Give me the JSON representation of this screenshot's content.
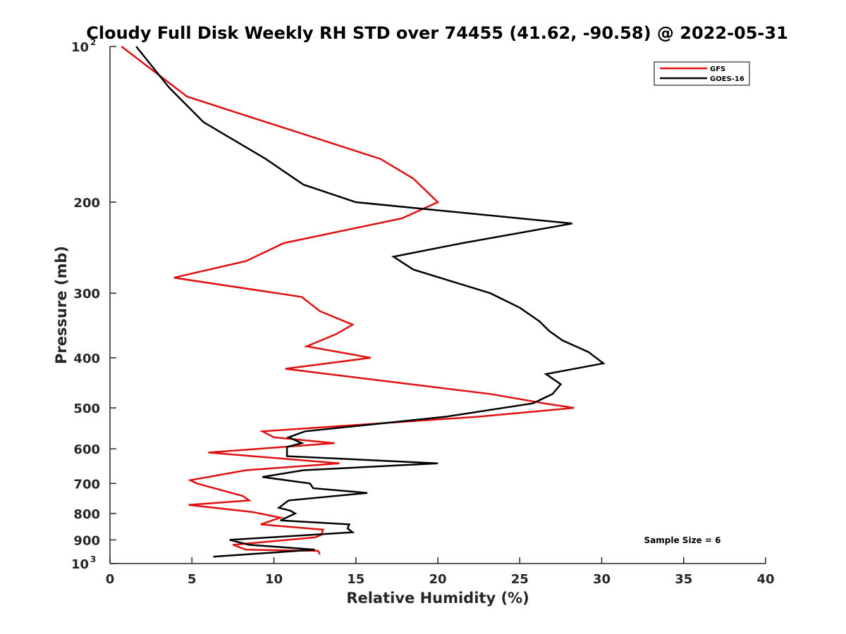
{
  "chart_data": {
    "type": "line",
    "title": "Cloudy Full Disk Weekly RH STD over 74455 (41.62, -90.58) @ 2022-05-31",
    "xlabel": "Relative Humidity (%)",
    "ylabel": "Pressure (mb)",
    "xlim": [
      0,
      40
    ],
    "ylim": [
      100,
      1000
    ],
    "y_scale": "log",
    "y_reversed": true,
    "x_ticks": [
      "0",
      "5",
      "10",
      "15",
      "20",
      "25",
      "30",
      "35",
      "40"
    ],
    "y_ticks": [
      {
        "value": 100,
        "base": "10",
        "exp": "2"
      },
      {
        "value": 200,
        "label": "200"
      },
      {
        "value": 300,
        "label": "300"
      },
      {
        "value": 400,
        "label": "400"
      },
      {
        "value": 500,
        "label": "500"
      },
      {
        "value": 600,
        "label": "600"
      },
      {
        "value": 700,
        "label": "700"
      },
      {
        "value": 800,
        "label": "800"
      },
      {
        "value": 900,
        "label": "900"
      },
      {
        "value": 1000,
        "base": "10",
        "exp": "3"
      }
    ],
    "grid": false,
    "legend_position": "top-right",
    "annotation": "Sample Size = 6",
    "series": [
      {
        "name": "GFS",
        "color": "#e01010",
        "points": [
          [
            0.7,
            100
          ],
          [
            4.7,
            125
          ],
          [
            16.5,
            165
          ],
          [
            18.5,
            180
          ],
          [
            20.0,
            200
          ],
          [
            17.8,
            215
          ],
          [
            10.6,
            240
          ],
          [
            8.3,
            260
          ],
          [
            3.9,
            280
          ],
          [
            11.7,
            305
          ],
          [
            12.8,
            325
          ],
          [
            14.8,
            345
          ],
          [
            13.8,
            360
          ],
          [
            12.0,
            380
          ],
          [
            15.9,
            400
          ],
          [
            10.7,
            420
          ],
          [
            23.2,
            470
          ],
          [
            26.5,
            490
          ],
          [
            28.3,
            500
          ],
          [
            22.5,
            520
          ],
          [
            9.3,
            555
          ],
          [
            10.0,
            570
          ],
          [
            13.7,
            585
          ],
          [
            6.0,
            610
          ],
          [
            14.0,
            640
          ],
          [
            8.3,
            660
          ],
          [
            4.9,
            690
          ],
          [
            5.3,
            700
          ],
          [
            8.1,
            740
          ],
          [
            8.5,
            755
          ],
          [
            4.8,
            770
          ],
          [
            8.7,
            795
          ],
          [
            10.4,
            815
          ],
          [
            9.9,
            825
          ],
          [
            9.2,
            840
          ],
          [
            13.0,
            860
          ],
          [
            12.9,
            880
          ],
          [
            12.5,
            890
          ],
          [
            7.5,
            920
          ],
          [
            8.3,
            940
          ],
          [
            12.7,
            945
          ],
          [
            12.8,
            960
          ]
        ]
      },
      {
        "name": "GOES-16",
        "color": "#000000",
        "points": [
          [
            1.6,
            100
          ],
          [
            3.6,
            120
          ],
          [
            5.7,
            140
          ],
          [
            9.5,
            165
          ],
          [
            11.8,
            185
          ],
          [
            15.0,
            200
          ],
          [
            28.2,
            220
          ],
          [
            21.5,
            240
          ],
          [
            17.3,
            255
          ],
          [
            18.5,
            270
          ],
          [
            23.2,
            300
          ],
          [
            25.0,
            320
          ],
          [
            26.2,
            340
          ],
          [
            26.8,
            355
          ],
          [
            27.6,
            370
          ],
          [
            29.2,
            390
          ],
          [
            30.1,
            410
          ],
          [
            26.6,
            430
          ],
          [
            27.5,
            450
          ],
          [
            27.0,
            470
          ],
          [
            25.8,
            490
          ],
          [
            20.5,
            520
          ],
          [
            11.9,
            555
          ],
          [
            10.9,
            570
          ],
          [
            11.7,
            585
          ],
          [
            10.8,
            595
          ],
          [
            10.8,
            620
          ],
          [
            20.0,
            640
          ],
          [
            11.8,
            660
          ],
          [
            9.3,
            680
          ],
          [
            12.2,
            700
          ],
          [
            12.4,
            715
          ],
          [
            15.7,
            730
          ],
          [
            10.9,
            755
          ],
          [
            10.3,
            780
          ],
          [
            11.0,
            790
          ],
          [
            11.3,
            800
          ],
          [
            10.4,
            825
          ],
          [
            14.6,
            840
          ],
          [
            14.5,
            855
          ],
          [
            14.8,
            870
          ],
          [
            7.3,
            900
          ],
          [
            8.5,
            920
          ],
          [
            12.5,
            940
          ],
          [
            6.3,
            970
          ]
        ]
      }
    ]
  }
}
